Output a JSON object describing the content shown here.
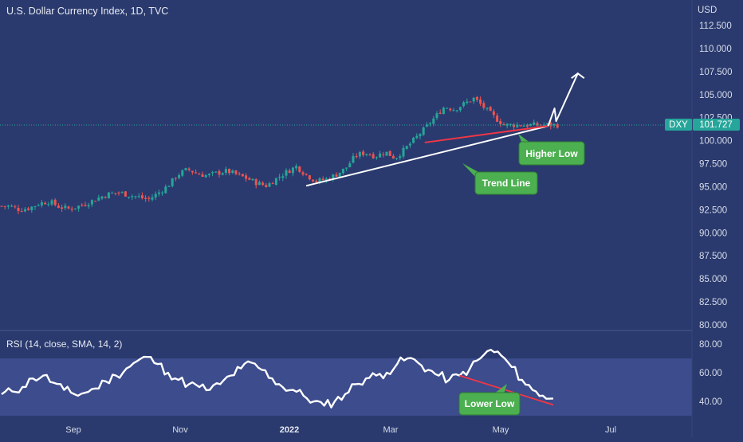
{
  "header": {
    "title": "U.S. Dollar Currency Index, 1D, TVC",
    "currency": "USD"
  },
  "colors": {
    "background": "#2a3a6e",
    "bull": "#26a69a",
    "bear": "#ef5350",
    "rsi_line": "#ffffff",
    "rsi_band": "#3c4c8c",
    "callout": "#4caf50",
    "trend_red": "#f23645",
    "price_tag": "#26a69a"
  },
  "chart_data": [
    {
      "type": "candlestick",
      "title": "U.S. Dollar Currency Index, 1D, TVC",
      "ylabel": "USD",
      "ylim": [
        80,
        114
      ],
      "yticks": [
        "112.500",
        "110.000",
        "107.500",
        "105.000",
        "102.500",
        "100.000",
        "97.500",
        "95.000",
        "92.500",
        "90.000",
        "87.500",
        "85.000",
        "82.500",
        "80.000"
      ],
      "xticks": [
        "Sep",
        "Nov",
        "2022",
        "Mar",
        "May",
        "Jul"
      ],
      "xtick_bold": "2022",
      "last_price": {
        "symbol": "DXY",
        "value": "101.727"
      },
      "close_series": [
        [
          2021.6,
          92.9
        ],
        [
          2021.62,
          92.5
        ],
        [
          2021.64,
          92.7
        ],
        [
          2021.66,
          93.2
        ],
        [
          2021.68,
          93.4
        ],
        [
          2021.7,
          92.8
        ],
        [
          2021.72,
          92.6
        ],
        [
          2021.74,
          92.9
        ],
        [
          2021.76,
          93.3
        ],
        [
          2021.78,
          93.8
        ],
        [
          2021.8,
          94.2
        ],
        [
          2021.82,
          94.4
        ],
        [
          2021.84,
          94.1
        ],
        [
          2021.86,
          93.9
        ],
        [
          2021.88,
          93.6
        ],
        [
          2021.9,
          94.3
        ],
        [
          2021.92,
          95.1
        ],
        [
          2021.94,
          96.3
        ],
        [
          2021.96,
          96.9
        ],
        [
          2021.98,
          96.4
        ],
        [
          2022.0,
          96.2
        ],
        [
          2022.02,
          96.5
        ],
        [
          2022.04,
          96.7
        ],
        [
          2022.06,
          96.3
        ],
        [
          2022.08,
          95.9
        ],
        [
          2022.1,
          95.4
        ],
        [
          2022.12,
          95.1
        ],
        [
          2022.14,
          95.9
        ],
        [
          2022.16,
          96.6
        ],
        [
          2022.18,
          97.2
        ],
        [
          2022.2,
          96.3
        ],
        [
          2022.22,
          95.6
        ],
        [
          2022.24,
          95.8
        ],
        [
          2022.26,
          96.3
        ],
        [
          2022.28,
          97.0
        ],
        [
          2022.3,
          98.4
        ],
        [
          2022.32,
          98.7
        ],
        [
          2022.34,
          98.3
        ],
        [
          2022.36,
          98.8
        ],
        [
          2022.38,
          98.1
        ],
        [
          2022.4,
          99.1
        ],
        [
          2022.42,
          100.2
        ],
        [
          2022.44,
          101.3
        ],
        [
          2022.46,
          102.5
        ],
        [
          2022.48,
          103.7
        ],
        [
          2022.5,
          103.4
        ],
        [
          2022.52,
          104.0
        ],
        [
          2022.54,
          104.6
        ],
        [
          2022.56,
          103.6
        ],
        [
          2022.58,
          102.6
        ],
        [
          2022.6,
          101.7
        ]
      ],
      "annotations": [
        {
          "type": "trend-line",
          "label": "Trend Line",
          "from": [
            2022.2,
            95.1
          ],
          "to": [
            2022.69,
            101.6
          ]
        },
        {
          "type": "higher-low-line",
          "label": "Higher Low",
          "from": [
            2022.44,
            99.8
          ],
          "to": [
            2022.69,
            101.6
          ]
        },
        {
          "type": "projection-arrow",
          "from": [
            2022.69,
            101.6
          ],
          "to": [
            2022.75,
            107.3
          ]
        }
      ]
    },
    {
      "type": "line",
      "title": "RSI (14, close, SMA, 14, 2)",
      "ylim": [
        30,
        85
      ],
      "yticks": [
        "80.00",
        "60.00",
        "40.00"
      ],
      "band": [
        30,
        70
      ],
      "series": [
        {
          "values": [
            45,
            47,
            50,
            56,
            58,
            53,
            48,
            45,
            46,
            49,
            54,
            58,
            63,
            68,
            71,
            66,
            60,
            55,
            52,
            50,
            48,
            52,
            58,
            63,
            67,
            62,
            56,
            50,
            48,
            44,
            40,
            37,
            40,
            45,
            52,
            56,
            58,
            60,
            66,
            70,
            67,
            62,
            58,
            55,
            58,
            63,
            70,
            76,
            72,
            64,
            55,
            48,
            44,
            42
          ]
        }
      ],
      "annotations": [
        {
          "type": "lower-low-line",
          "label": "Lower Low",
          "from_index": 44,
          "to_index": 53
        }
      ]
    }
  ],
  "callouts": {
    "trend_line": "Trend Line",
    "higher_low": "Higher Low",
    "lower_low": "Lower Low"
  }
}
